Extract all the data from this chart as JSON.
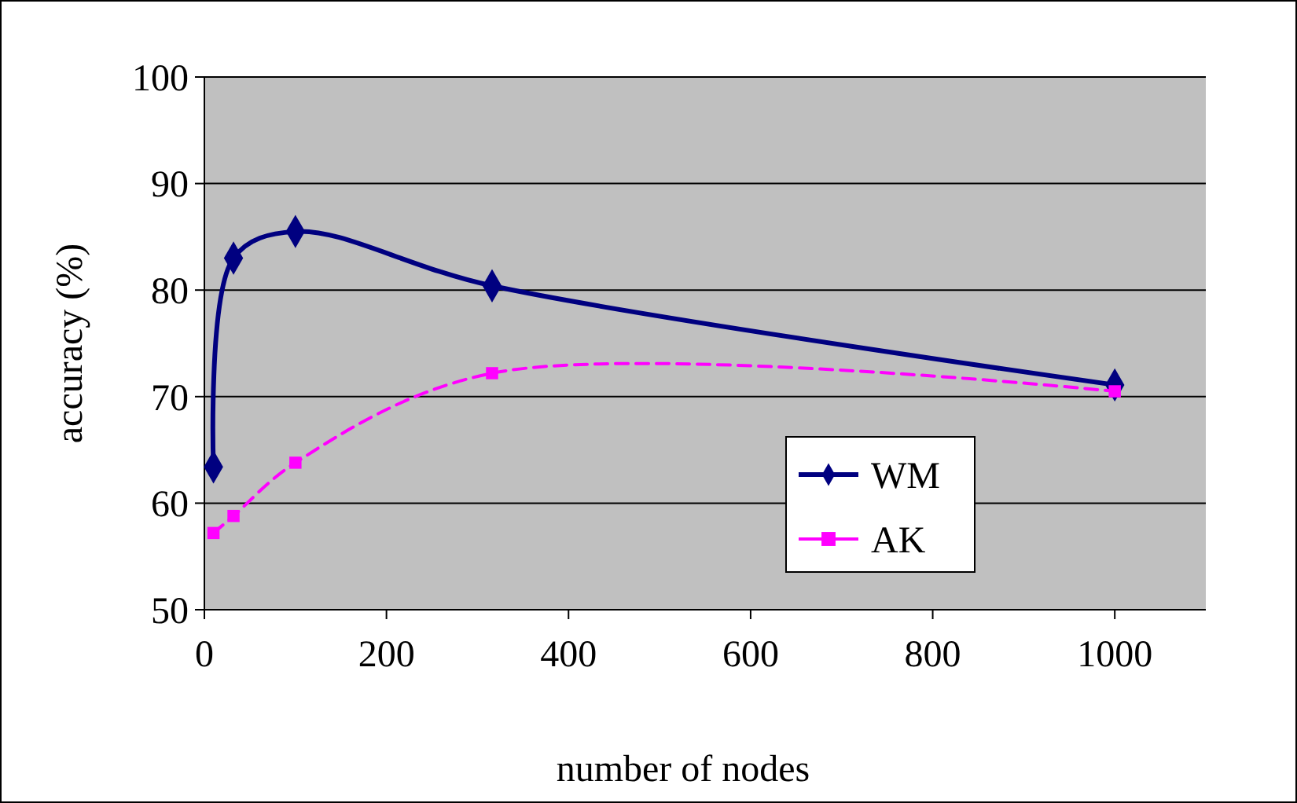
{
  "chart_data": {
    "type": "line",
    "xlabel": "number of nodes",
    "ylabel": "accuracy (%)",
    "xlim": [
      0,
      1100
    ],
    "xticks": [
      0,
      200,
      400,
      600,
      800,
      1000
    ],
    "ylim": [
      50,
      100
    ],
    "yticks": [
      50,
      60,
      70,
      80,
      90,
      100
    ],
    "grid": "y",
    "legend": "right",
    "series": [
      {
        "name": "WM",
        "color": "#000080",
        "x": [
          10,
          32,
          100,
          316,
          1000
        ],
        "values": [
          63.4,
          83.0,
          85.5,
          80.4,
          71.1
        ],
        "marker": "diamond",
        "line_style": "solid"
      },
      {
        "name": "AK",
        "color": "#ff00ff",
        "x": [
          10,
          32,
          100,
          316,
          1000
        ],
        "values": [
          57.2,
          58.8,
          63.8,
          72.2,
          70.5
        ],
        "marker": "square",
        "line_style": "dashed"
      }
    ]
  }
}
